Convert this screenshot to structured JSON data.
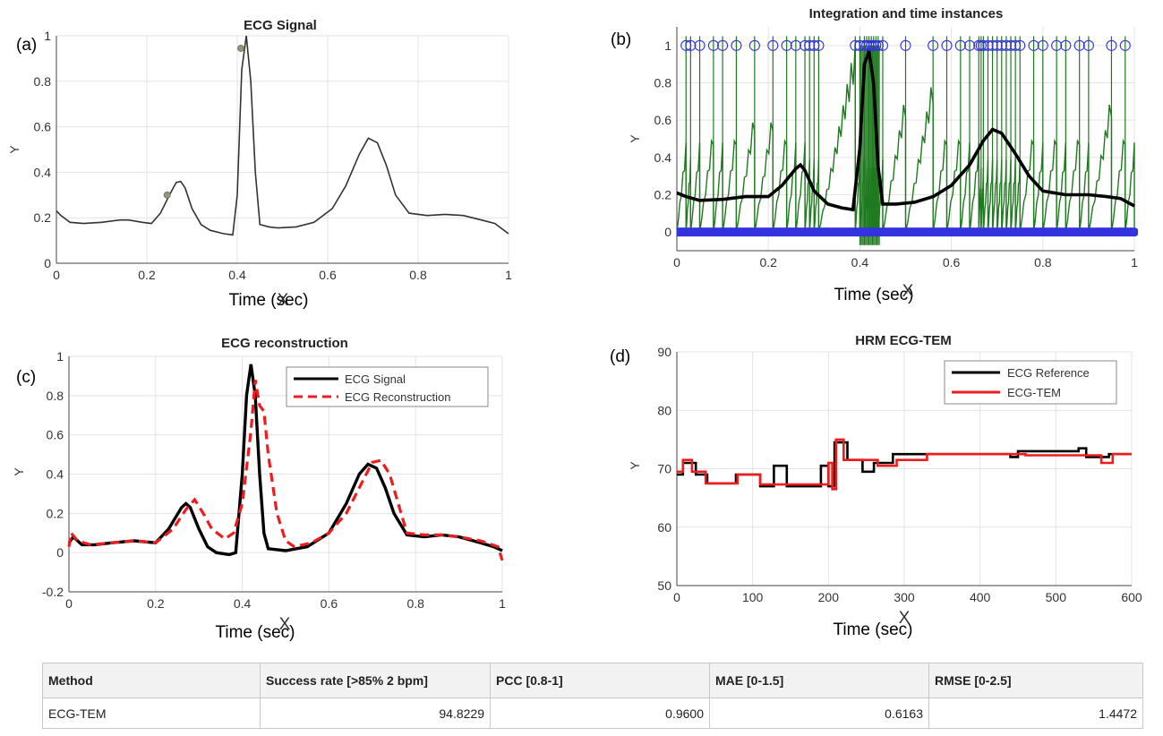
{
  "chart_data": [
    {
      "panel": "(a)",
      "type": "line",
      "title": "ECG Signal",
      "xlabel": "Time (sec)",
      "xlabel_overlay": "X",
      "ylabel": "Y",
      "xlim": [
        0,
        1
      ],
      "ylim": [
        0,
        1
      ],
      "xticks": [
        "0",
        "0.2",
        "0.4",
        "0.6",
        "0.8",
        "1"
      ],
      "yticks": [
        "0",
        "0.2",
        "0.4",
        "0.6",
        "0.8",
        "1"
      ],
      "grid": true,
      "series": [
        {
          "color": "#333333",
          "points": [
            [
              0,
              0.23
            ],
            [
              0.01,
              0.21
            ],
            [
              0.03,
              0.18
            ],
            [
              0.06,
              0.175
            ],
            [
              0.1,
              0.18
            ],
            [
              0.14,
              0.19
            ],
            [
              0.16,
              0.19
            ],
            [
              0.19,
              0.18
            ],
            [
              0.21,
              0.175
            ],
            [
              0.23,
              0.22
            ],
            [
              0.25,
              0.3
            ],
            [
              0.265,
              0.355
            ],
            [
              0.275,
              0.36
            ],
            [
              0.285,
              0.33
            ],
            [
              0.3,
              0.24
            ],
            [
              0.32,
              0.17
            ],
            [
              0.34,
              0.145
            ],
            [
              0.37,
              0.13
            ],
            [
              0.39,
              0.125
            ],
            [
              0.4,
              0.3
            ],
            [
              0.41,
              0.85
            ],
            [
              0.42,
              1.0
            ],
            [
              0.43,
              0.8
            ],
            [
              0.44,
              0.4
            ],
            [
              0.45,
              0.17
            ],
            [
              0.47,
              0.16
            ],
            [
              0.49,
              0.155
            ],
            [
              0.53,
              0.16
            ],
            [
              0.57,
              0.18
            ],
            [
              0.61,
              0.24
            ],
            [
              0.64,
              0.34
            ],
            [
              0.67,
              0.48
            ],
            [
              0.69,
              0.55
            ],
            [
              0.71,
              0.53
            ],
            [
              0.73,
              0.43
            ],
            [
              0.75,
              0.3
            ],
            [
              0.78,
              0.22
            ],
            [
              0.82,
              0.21
            ],
            [
              0.86,
              0.215
            ],
            [
              0.9,
              0.21
            ],
            [
              0.94,
              0.19
            ],
            [
              0.97,
              0.175
            ],
            [
              1.0,
              0.13
            ]
          ]
        }
      ],
      "markers": [
        [
          0.245,
          0.3
        ],
        [
          0.408,
          0.945
        ]
      ]
    },
    {
      "panel": "(b)",
      "type": "line",
      "title": "Integration and time instances",
      "xlabel": "Time (sec)",
      "xlabel_overlay": "X",
      "ylabel": "Y",
      "xlim": [
        0,
        1
      ],
      "ylim": [
        -0.1,
        1.1
      ],
      "xticks": [
        "0",
        "0.2",
        "0.4",
        "0.6",
        "0.8",
        "1"
      ],
      "yticks": [
        "0",
        "0.2",
        "0.4",
        "0.6",
        "0.8",
        "1"
      ],
      "grid": true,
      "integration_color": "#1f7a1f",
      "spike_times": [
        0.02,
        0.03,
        0.05,
        0.08,
        0.1,
        0.13,
        0.17,
        0.21,
        0.24,
        0.26,
        0.28,
        0.29,
        0.3,
        0.31,
        0.39,
        0.4,
        0.41,
        0.415,
        0.42,
        0.425,
        0.43,
        0.435,
        0.44,
        0.45,
        0.5,
        0.56,
        0.59,
        0.62,
        0.64,
        0.66,
        0.665,
        0.67,
        0.68,
        0.69,
        0.7,
        0.71,
        0.72,
        0.73,
        0.74,
        0.75,
        0.78,
        0.8,
        0.83,
        0.85,
        0.88,
        0.9,
        0.95,
        0.98
      ],
      "instance_color": "#3333dd",
      "signal": {
        "color": "#000000",
        "points": [
          [
            0,
            0.21
          ],
          [
            0.02,
            0.19
          ],
          [
            0.05,
            0.17
          ],
          [
            0.1,
            0.175
          ],
          [
            0.15,
            0.19
          ],
          [
            0.2,
            0.19
          ],
          [
            0.23,
            0.25
          ],
          [
            0.26,
            0.34
          ],
          [
            0.27,
            0.36
          ],
          [
            0.28,
            0.33
          ],
          [
            0.3,
            0.22
          ],
          [
            0.33,
            0.15
          ],
          [
            0.36,
            0.13
          ],
          [
            0.385,
            0.12
          ],
          [
            0.4,
            0.45
          ],
          [
            0.41,
            0.9
          ],
          [
            0.42,
            0.97
          ],
          [
            0.43,
            0.8
          ],
          [
            0.44,
            0.35
          ],
          [
            0.45,
            0.15
          ],
          [
            0.48,
            0.15
          ],
          [
            0.52,
            0.16
          ],
          [
            0.56,
            0.19
          ],
          [
            0.6,
            0.25
          ],
          [
            0.64,
            0.36
          ],
          [
            0.67,
            0.49
          ],
          [
            0.69,
            0.55
          ],
          [
            0.71,
            0.53
          ],
          [
            0.74,
            0.42
          ],
          [
            0.77,
            0.3
          ],
          [
            0.8,
            0.22
          ],
          [
            0.85,
            0.2
          ],
          [
            0.9,
            0.2
          ],
          [
            0.94,
            0.19
          ],
          [
            0.97,
            0.18
          ],
          [
            1.0,
            0.14
          ]
        ]
      }
    },
    {
      "panel": "(c)",
      "type": "line",
      "title": "ECG reconstruction",
      "xlabel": "Time (sec)",
      "xlabel_overlay": "X",
      "ylabel": "Y",
      "xlim": [
        0,
        1
      ],
      "ylim": [
        -0.2,
        1
      ],
      "xticks": [
        "0",
        "0.2",
        "0.4",
        "0.6",
        "0.8",
        "1"
      ],
      "yticks": [
        "-0.2",
        "0",
        "0.2",
        "0.4",
        "0.6",
        "0.8",
        "1"
      ],
      "grid": true,
      "legend": "top-right",
      "series": [
        {
          "name": "ECG Signal",
          "color": "#000000",
          "dash": false,
          "points": [
            [
              0,
              0.05
            ],
            [
              0.01,
              0.08
            ],
            [
              0.03,
              0.04
            ],
            [
              0.06,
              0.04
            ],
            [
              0.1,
              0.05
            ],
            [
              0.15,
              0.06
            ],
            [
              0.2,
              0.05
            ],
            [
              0.23,
              0.12
            ],
            [
              0.26,
              0.23
            ],
            [
              0.27,
              0.25
            ],
            [
              0.28,
              0.23
            ],
            [
              0.3,
              0.12
            ],
            [
              0.32,
              0.03
            ],
            [
              0.34,
              0.0
            ],
            [
              0.37,
              -0.01
            ],
            [
              0.385,
              0.0
            ],
            [
              0.4,
              0.4
            ],
            [
              0.41,
              0.8
            ],
            [
              0.42,
              0.96
            ],
            [
              0.43,
              0.8
            ],
            [
              0.44,
              0.4
            ],
            [
              0.45,
              0.1
            ],
            [
              0.46,
              0.02
            ],
            [
              0.5,
              0.01
            ],
            [
              0.55,
              0.03
            ],
            [
              0.6,
              0.1
            ],
            [
              0.64,
              0.25
            ],
            [
              0.67,
              0.4
            ],
            [
              0.69,
              0.45
            ],
            [
              0.71,
              0.43
            ],
            [
              0.73,
              0.33
            ],
            [
              0.75,
              0.2
            ],
            [
              0.78,
              0.09
            ],
            [
              0.82,
              0.08
            ],
            [
              0.86,
              0.09
            ],
            [
              0.9,
              0.08
            ],
            [
              0.95,
              0.05
            ],
            [
              0.98,
              0.03
            ],
            [
              1.0,
              0.01
            ]
          ]
        },
        {
          "name": "ECG Reconstruction",
          "color": "#ee1c1c",
          "dash": true,
          "points": [
            [
              0,
              0.03
            ],
            [
              0.005,
              0.1
            ],
            [
              0.02,
              0.06
            ],
            [
              0.05,
              0.04
            ],
            [
              0.1,
              0.05
            ],
            [
              0.15,
              0.06
            ],
            [
              0.2,
              0.05
            ],
            [
              0.24,
              0.12
            ],
            [
              0.27,
              0.22
            ],
            [
              0.29,
              0.27
            ],
            [
              0.31,
              0.2
            ],
            [
              0.33,
              0.12
            ],
            [
              0.36,
              0.07
            ],
            [
              0.38,
              0.1
            ],
            [
              0.4,
              0.25
            ],
            [
              0.42,
              0.62
            ],
            [
              0.43,
              0.88
            ],
            [
              0.44,
              0.75
            ],
            [
              0.45,
              0.72
            ],
            [
              0.46,
              0.5
            ],
            [
              0.48,
              0.2
            ],
            [
              0.5,
              0.06
            ],
            [
              0.52,
              0.03
            ],
            [
              0.56,
              0.05
            ],
            [
              0.6,
              0.1
            ],
            [
              0.64,
              0.2
            ],
            [
              0.67,
              0.33
            ],
            [
              0.7,
              0.46
            ],
            [
              0.72,
              0.47
            ],
            [
              0.74,
              0.4
            ],
            [
              0.76,
              0.25
            ],
            [
              0.78,
              0.1
            ],
            [
              0.82,
              0.09
            ],
            [
              0.86,
              0.09
            ],
            [
              0.9,
              0.08
            ],
            [
              0.95,
              0.06
            ],
            [
              0.99,
              0.03
            ],
            [
              1.0,
              -0.04
            ]
          ]
        }
      ]
    },
    {
      "panel": "(d)",
      "type": "line",
      "title": "HRM ECG-TEM",
      "xlabel": "Time (sec)",
      "xlabel_overlay": "X",
      "ylabel": "Y",
      "xlim": [
        0,
        600
      ],
      "ylim": [
        50,
        90
      ],
      "xticks": [
        "0",
        "100",
        "200",
        "300",
        "400",
        "500",
        "600"
      ],
      "yticks": [
        "50",
        "60",
        "70",
        "80",
        "90"
      ],
      "grid": true,
      "legend": "top-right",
      "series": [
        {
          "name": "ECG Reference",
          "color": "#000000",
          "step": true,
          "points": [
            [
              0,
              69
            ],
            [
              8,
              71
            ],
            [
              25,
              69
            ],
            [
              40,
              67.5
            ],
            [
              70,
              67.5
            ],
            [
              78,
              69
            ],
            [
              110,
              67
            ],
            [
              128,
              70.5
            ],
            [
              145,
              67
            ],
            [
              190,
              70.5
            ],
            [
              200,
              67
            ],
            [
              208,
              74.5
            ],
            [
              225,
              71.5
            ],
            [
              245,
              69.5
            ],
            [
              260,
              71
            ],
            [
              285,
              72.5
            ],
            [
              330,
              72.5
            ],
            [
              380,
              72.5
            ],
            [
              440,
              72
            ],
            [
              450,
              73
            ],
            [
              530,
              73.5
            ],
            [
              540,
              72
            ],
            [
              570,
              72.5
            ],
            [
              600,
              72.5
            ]
          ]
        },
        {
          "name": "ECG-TEM",
          "color": "#ee1c1c",
          "step": true,
          "points": [
            [
              0,
              69.5
            ],
            [
              8,
              71.5
            ],
            [
              20,
              69.5
            ],
            [
              38,
              67.5
            ],
            [
              70,
              67.5
            ],
            [
              80,
              69
            ],
            [
              110,
              67.3
            ],
            [
              190,
              67.3
            ],
            [
              200,
              71
            ],
            [
              205,
              66.5
            ],
            [
              210,
              75
            ],
            [
              220,
              71.5
            ],
            [
              250,
              71.5
            ],
            [
              265,
              70.5
            ],
            [
              290,
              71.5
            ],
            [
              330,
              72.5
            ],
            [
              440,
              72.5
            ],
            [
              460,
              72.3
            ],
            [
              540,
              72.3
            ],
            [
              560,
              71
            ],
            [
              575,
              72.5
            ],
            [
              600,
              72.5
            ]
          ]
        }
      ]
    }
  ],
  "table": {
    "headers": [
      "Method",
      "Success rate [>85% 2 bpm]",
      "PCC [0.8-1]",
      "MAE [0-1.5]",
      "RMSE [0-2.5]"
    ],
    "rows": [
      [
        "ECG-TEM",
        "94.8229",
        "0.9600",
        "0.6163",
        "1.4472"
      ]
    ]
  }
}
